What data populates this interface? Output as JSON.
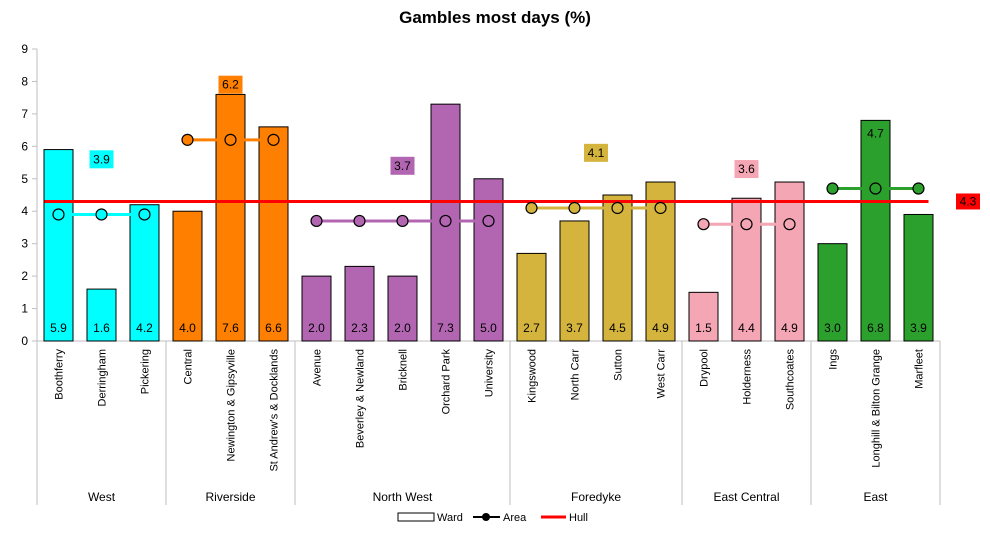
{
  "chart_data": {
    "type": "bar",
    "title": "Gambles most days (%)",
    "ylim": [
      0,
      9
    ],
    "yticks": [
      0,
      1,
      2,
      3,
      4,
      5,
      6,
      7,
      8,
      9
    ],
    "grid": false,
    "legend_position": "bottom",
    "legend": [
      "Ward",
      "Area",
      "Hull"
    ],
    "hull": {
      "name": "Hull",
      "value": 4.3,
      "label": "4.3",
      "color": "#ff0000"
    },
    "groups": [
      {
        "name": "West",
        "color": "#00ffff",
        "area_value": 3.9,
        "area_label": "3.9",
        "wards": [
          {
            "name": "Boothferry",
            "value": 5.9,
            "label": "5.9"
          },
          {
            "name": "Derringham",
            "value": 1.6,
            "label": "1.6"
          },
          {
            "name": "Pickering",
            "value": 4.2,
            "label": "4.2"
          }
        ]
      },
      {
        "name": "Riverside",
        "color": "#ff7f00",
        "area_value": 6.2,
        "area_label": "6.2",
        "wards": [
          {
            "name": "Central",
            "value": 4.0,
            "label": "4.0"
          },
          {
            "name": "Newington & Gipsyville",
            "value": 7.6,
            "label": "7.6"
          },
          {
            "name": "St Andrew's & Docklands",
            "value": 6.6,
            "label": "6.6"
          }
        ]
      },
      {
        "name": "North West",
        "color": "#b266b2",
        "area_value": 3.7,
        "area_label": "3.7",
        "wards": [
          {
            "name": "Avenue",
            "value": 2.0,
            "label": "2.0"
          },
          {
            "name": "Beverley & Newland",
            "value": 2.3,
            "label": "2.3"
          },
          {
            "name": "Bricknell",
            "value": 2.0,
            "label": "2.0"
          },
          {
            "name": "Orchard Park",
            "value": 7.3,
            "label": "7.3"
          },
          {
            "name": "University",
            "value": 5.0,
            "label": "5.0"
          }
        ]
      },
      {
        "name": "Foredyke",
        "color": "#d4b43c",
        "area_value": 4.1,
        "area_label": "4.1",
        "wards": [
          {
            "name": "Kingswood",
            "value": 2.7,
            "label": "2.7"
          },
          {
            "name": "North Carr",
            "value": 3.7,
            "label": "3.7"
          },
          {
            "name": "Sutton",
            "value": 4.5,
            "label": "4.5"
          },
          {
            "name": "West Carr",
            "value": 4.9,
            "label": "4.9"
          }
        ]
      },
      {
        "name": "East Central",
        "color": "#f4a6b4",
        "area_value": 3.6,
        "area_label": "3.6",
        "wards": [
          {
            "name": "Drypool",
            "value": 1.5,
            "label": "1.5"
          },
          {
            "name": "Holderness",
            "value": 4.4,
            "label": "4.4"
          },
          {
            "name": "Southcoates",
            "value": 4.9,
            "label": "4.9"
          }
        ]
      },
      {
        "name": "East",
        "color": "#2ca02c",
        "area_value": 4.7,
        "area_label": "4.7",
        "wards": [
          {
            "name": "Ings",
            "value": 3.0,
            "label": "3.0"
          },
          {
            "name": "Longhill & Bilton Grange",
            "value": 6.8,
            "label": "6.8"
          },
          {
            "name": "Marfleet",
            "value": 3.9,
            "label": "3.9"
          }
        ]
      }
    ]
  }
}
